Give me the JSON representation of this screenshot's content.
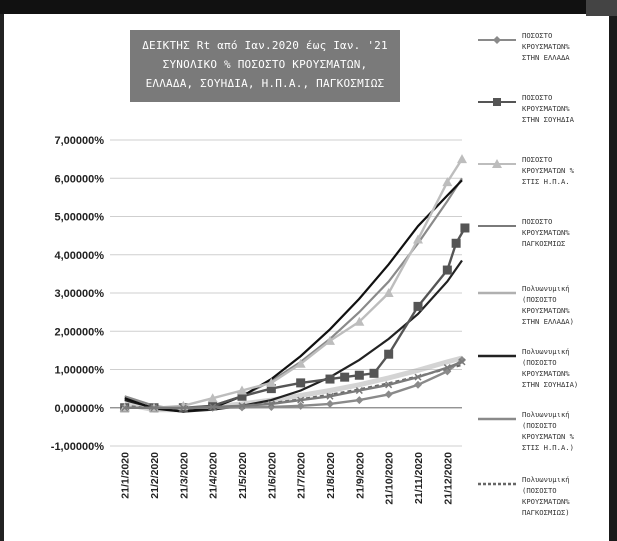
{
  "chart_data": {
    "type": "line",
    "title_lines": [
      "ΔΕΙΚΤΗΣ Rt από Ιαν.2020 έως Ιαν. '21",
      "ΣΥΝΟΛΙΚΟ % ΠΟΣΟΣΤΟ ΚΡΟΥΣΜΑΤΩΝ,",
      "ΕΛΛΑΔΑ, ΣΟΥΗΔΙΑ, Η.Π.Α., ΠΑΓΚΟΣΜΙΩΣ"
    ],
    "categories": [
      "21/1/2020",
      "21/2/2020",
      "21/3/2020",
      "21/4/2020",
      "21/5/2020",
      "21/6/2020",
      "21/7/2020",
      "21/8/2020",
      "21/9/2020",
      "21/10/2020",
      "21/11/2020",
      "21/12/2020"
    ],
    "ylim": [
      -1,
      7
    ],
    "yticks": [
      "7,00000%",
      "6,00000%",
      "5,00000%",
      "4,00000%",
      "3,00000%",
      "2,00000%",
      "1,00000%",
      "0,00000%",
      "-1,00000%"
    ],
    "ytick_values": [
      7,
      6,
      5,
      4,
      3,
      2,
      1,
      0,
      -1
    ],
    "grid": true,
    "legend_position": "right",
    "series": [
      {
        "name_lines": [
          "ΠΟΣΟΣΤΟ",
          "ΚΡΟΥΣΜΑΤΩΝ%",
          "ΣΤΗΝ ΕΛΛΑΔΑ"
        ],
        "color": "#8a8a8a",
        "marker": "diamond",
        "x": [
          0,
          1,
          2,
          3,
          4,
          5,
          6,
          7,
          8,
          9,
          10,
          11,
          11.5
        ],
        "values": [
          0,
          0,
          0,
          0,
          0.01,
          0.02,
          0.05,
          0.1,
          0.2,
          0.35,
          0.6,
          0.95,
          1.25
        ]
      },
      {
        "name_lines": [
          "ΠΟΣΟΣΤΟ",
          "ΚΡΟΥΣΜΑΤΩΝ%",
          "ΣΤΗΝ ΣΟΥΗΔΙΑ"
        ],
        "color": "#555555",
        "marker": "square",
        "x": [
          0,
          1,
          2,
          3,
          4,
          5,
          6,
          7,
          7.5,
          8,
          8.5,
          9,
          10,
          11,
          11.3,
          11.6
        ],
        "values": [
          0,
          0,
          0,
          0.05,
          0.3,
          0.5,
          0.65,
          0.75,
          0.8,
          0.85,
          0.9,
          1.4,
          2.65,
          3.6,
          4.3,
          4.7
        ]
      },
      {
        "name_lines": [
          "ΠΟΣΟΣΤΟ",
          "ΚΡΟΥΣΜΑΤΩΝ %",
          "ΣΤΙΣ Η.Π.Α."
        ],
        "color": "#bdbdbd",
        "marker": "triangle",
        "x": [
          0,
          1,
          2,
          3,
          4,
          5,
          6,
          7,
          8,
          9,
          10,
          11,
          11.5
        ],
        "values": [
          0,
          0,
          0.05,
          0.25,
          0.45,
          0.65,
          1.15,
          1.75,
          2.25,
          3.0,
          4.4,
          5.9,
          6.5
        ]
      },
      {
        "name_lines": [
          "ΠΟΣΟΣΤΟ",
          "ΚΡΟΥΣΜΑΤΩΝ%",
          "ΠΑΓΚΟΣΜΙΩΣ"
        ],
        "color": "#7a7a7a",
        "marker": "cross",
        "x": [
          0,
          1,
          2,
          3,
          4,
          5,
          6,
          7,
          8,
          9,
          10,
          11,
          11.5
        ],
        "values": [
          0,
          0,
          0,
          0.02,
          0.05,
          0.1,
          0.2,
          0.3,
          0.45,
          0.6,
          0.8,
          1.05,
          1.2
        ]
      },
      {
        "name_lines": [
          "Πολυωνυμική",
          "(ΠΟΣΟΣΤΟ",
          "ΚΡΟΥΣΜΑΤΩΝ%",
          "ΣΤΗΝ ΕΛΛΑΔΑ)"
        ],
        "color": "#b0b0b0",
        "marker": "none",
        "trend": true,
        "x": [
          0,
          1,
          2,
          3,
          4,
          5,
          6,
          7,
          8,
          9,
          10,
          11,
          11.5
        ],
        "values": [
          0.1,
          -0.05,
          -0.05,
          0.02,
          0.1,
          0.2,
          0.32,
          0.45,
          0.6,
          0.78,
          0.98,
          1.2,
          1.3
        ]
      },
      {
        "name_lines": [
          "Πολυωνυμική",
          "(ΠΟΣΟΣΤΟ",
          "ΚΡΟΥΣΜΑΤΩΝ%",
          "ΣΤΗΝ ΣΟΥΗΔΙΑ)"
        ],
        "color": "#222222",
        "marker": "none",
        "trend": true,
        "x": [
          0,
          1,
          2,
          3,
          4,
          5,
          6,
          7,
          8,
          9,
          10,
          11,
          11.5
        ],
        "values": [
          0.2,
          0,
          -0.1,
          -0.05,
          0.05,
          0.2,
          0.45,
          0.8,
          1.25,
          1.8,
          2.45,
          3.3,
          3.85
        ]
      },
      {
        "name_lines": [
          "Πολυωνυμική",
          "(ΠΟΣΟΣΤΟ",
          "ΚΡΟΥΣΜΑΤΩΝ %",
          "ΣΤΙΣ Η.Π.Α.)"
        ],
        "color": "#8a8a8a",
        "marker": "none",
        "trend": true,
        "x": [
          0,
          1,
          2,
          3,
          4,
          5,
          6,
          7,
          8,
          9,
          10,
          11,
          11.5
        ],
        "values": [
          0.3,
          0.05,
          -0.05,
          0.05,
          0.3,
          0.7,
          1.2,
          1.8,
          2.5,
          3.3,
          4.3,
          5.4,
          6.0
        ]
      },
      {
        "name_lines": [
          "Πολυωνυμική",
          "(ΠΟΣΟΣΤΟ",
          "ΚΡΟΥΣΜΑΤΩΝ%",
          "ΠΑΓΚΟΣΜΙΩΣ)"
        ],
        "color": "#666666",
        "marker": "none",
        "trend": true,
        "dashed": true,
        "x": [
          0,
          1,
          2,
          3,
          4,
          5,
          6,
          7,
          8,
          9,
          10,
          11,
          11.5
        ],
        "values": [
          0.05,
          -0.02,
          -0.03,
          0,
          0.05,
          0.12,
          0.22,
          0.34,
          0.48,
          0.64,
          0.82,
          1.02,
          1.12
        ]
      }
    ],
    "extra_trend": {
      "color": "#111111",
      "x": [
        0,
        1,
        2,
        3,
        4,
        5,
        6,
        7,
        8,
        9,
        10,
        11,
        11.5
      ],
      "values": [
        0.25,
        -0.02,
        -0.1,
        0,
        0.3,
        0.75,
        1.35,
        2.05,
        2.85,
        3.75,
        4.75,
        5.55,
        5.95
      ]
    }
  }
}
